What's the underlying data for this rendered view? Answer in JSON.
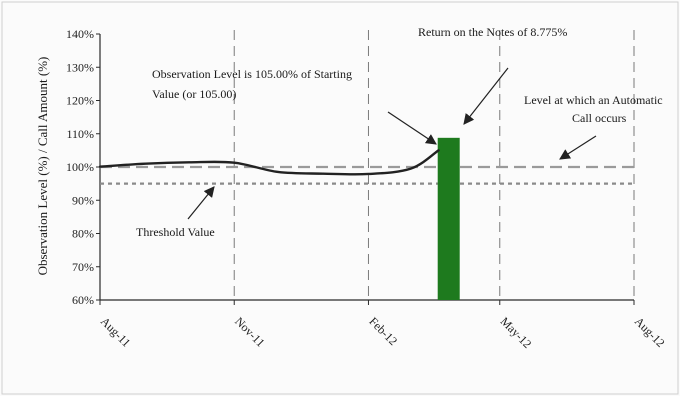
{
  "chart_data": {
    "type": "line",
    "xlabel": "",
    "ylabel": "Observation Level (%) / Call Amount (%)",
    "ylim": [
      60,
      140
    ],
    "y_ticks": [
      "60%",
      "70%",
      "80%",
      "90%",
      "100%",
      "110%",
      "120%",
      "130%",
      "140%"
    ],
    "y_tick_values": [
      60,
      70,
      80,
      90,
      100,
      110,
      120,
      130,
      140
    ],
    "x_ticks": [
      "Aug-11",
      "Nov-11",
      "Feb-12",
      "May-12",
      "Aug-12"
    ],
    "x_tick_values": [
      "2011-08",
      "2011-11",
      "2012-02",
      "2012-05",
      "2012-08"
    ],
    "grid": "vertical dashed lines at each x tick",
    "series": [
      {
        "kind": "line",
        "x": [
          "2011-08-01",
          "2011-09-01",
          "2011-10-01",
          "2011-11-01",
          "2011-12-01",
          "2012-01-01",
          "2012-02-01",
          "2012-03-01",
          "2012-03-20"
        ],
        "values": [
          100.1,
          101.0,
          101.4,
          101.3,
          98.5,
          98.0,
          97.9,
          99.5,
          105.0
        ],
        "color": "#222222"
      },
      {
        "kind": "bar",
        "x": "2012-03-27",
        "value": 108.775,
        "color": "#1e7a1e"
      },
      {
        "kind": "reference-line",
        "value": 100,
        "style": "dashed",
        "color": "#9a9a9a"
      },
      {
        "kind": "reference-line",
        "value": 95,
        "style": "dotted",
        "color": "#8a8a8a"
      }
    ],
    "annotations": [
      {
        "id": "return-note",
        "text": "Return on the Notes of 8.775%"
      },
      {
        "id": "observation-note-1",
        "text": "Observation Level is 105.00% of Starting"
      },
      {
        "id": "observation-note-2",
        "text": "Value (or 105.00)"
      },
      {
        "id": "autocall-note-1",
        "text": "Level at which an Automatic"
      },
      {
        "id": "autocall-note-2",
        "text": "Call occurs"
      },
      {
        "id": "threshold-note",
        "text": "Threshold Value"
      }
    ]
  }
}
